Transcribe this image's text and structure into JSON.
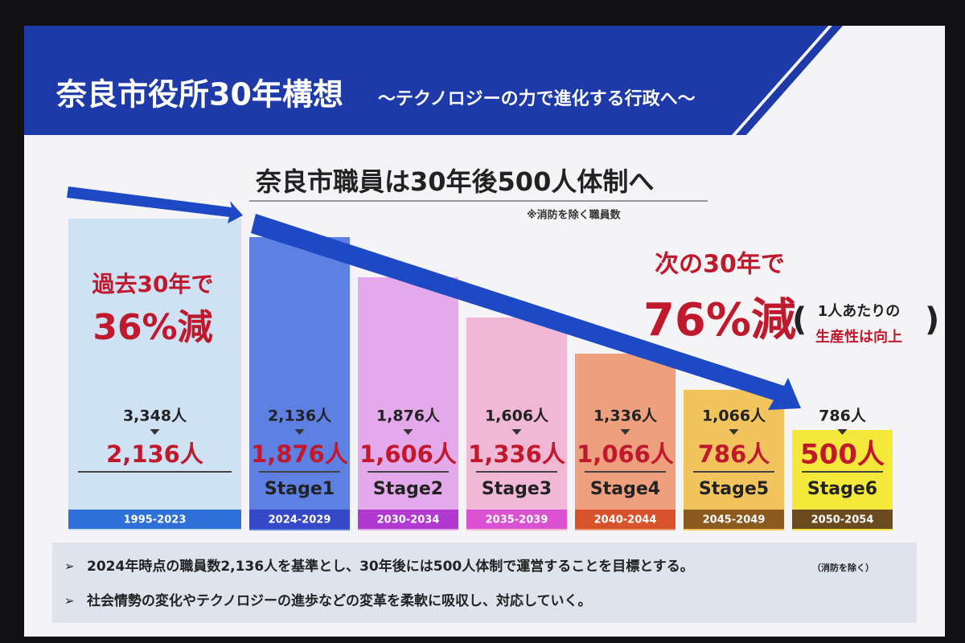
{
  "header": {
    "title": "奈良市役所30年構想",
    "subtitle": "～テクノロジーの力で進化する行政へ～"
  },
  "headline": {
    "text": "奈良市職員は30年後500人体制へ",
    "note": "※消防を除く職員数"
  },
  "past": {
    "label": "過去30年で",
    "change": "36%減"
  },
  "future": {
    "label": "次の30年で",
    "change": "76%減",
    "aside": [
      "1人あたりの",
      "生産性は向上"
    ]
  },
  "columns": [
    {
      "from": "3,348人",
      "to": "2,136人",
      "period": "1995-2023"
    },
    {
      "from": "2,136人",
      "to": "1,876人",
      "stage": "Stage1",
      "period": "2024-2029"
    },
    {
      "from": "1,876人",
      "to": "1,606人",
      "stage": "Stage2",
      "period": "2030-2034"
    },
    {
      "from": "1,606人",
      "to": "1,336人",
      "stage": "Stage3",
      "period": "2035-2039"
    },
    {
      "from": "1,336人",
      "to": "1,066人",
      "stage": "Stage4",
      "period": "2040-2044"
    },
    {
      "from": "1,066人",
      "to": "786人",
      "stage": "Stage5",
      "period": "2045-2049"
    },
    {
      "from": "786人",
      "to": "500人",
      "stage": "Stage6",
      "period": "2050-2054"
    }
  ],
  "bullets": [
    {
      "text": "2024年時点の職員数2,136人を基準とし、30年後には500人体制で運営することを目標とする。",
      "note": "（消防を除く）"
    },
    {
      "text": "社会情勢の変化やテクノロジーの進歩などの変革を柔軟に吸収し、対応していく。"
    }
  ]
}
